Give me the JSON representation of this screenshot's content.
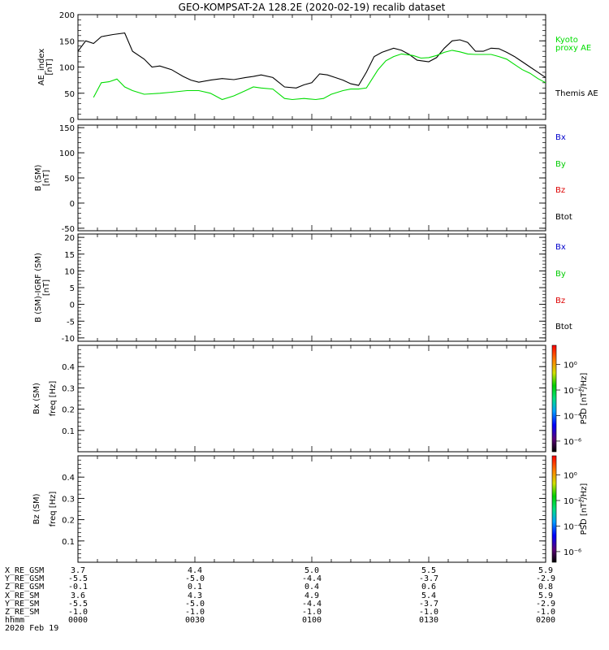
{
  "title": "GEO-KOMPSAT-2A 128.2E (2020-02-19) recalib dataset",
  "panels": {
    "ae": {
      "ylabel_line1": "AE_index",
      "ylabel_line2": "[nT]",
      "yticks": [
        "0",
        "50",
        "100",
        "150",
        "200"
      ],
      "legend": [
        {
          "text": "Kyoto",
          "color": "#00dd00"
        },
        {
          "text": "proxy AE",
          "color": "#00dd00"
        },
        {
          "text": "Themis AE",
          "color": "#000000"
        }
      ]
    },
    "b": {
      "ylabel_line1": "B (SM)",
      "ylabel_line2": "[nT]",
      "yticks": [
        "-50",
        "0",
        "50",
        "100",
        "150"
      ],
      "legend": [
        {
          "text": "Bx",
          "color": "#0000cc"
        },
        {
          "text": "By",
          "color": "#00cc00"
        },
        {
          "text": "Bz",
          "color": "#dd0000"
        },
        {
          "text": "Btot",
          "color": "#000000"
        }
      ]
    },
    "db": {
      "ylabel_line1": "B (SM)-IGRF (SM)",
      "ylabel_line2": "[nT]",
      "yticks": [
        "-10",
        "-5",
        "0",
        "5",
        "10",
        "15",
        "20"
      ],
      "legend": [
        {
          "text": "Bx",
          "color": "#0000cc"
        },
        {
          "text": "By",
          "color": "#00cc00"
        },
        {
          "text": "Bz",
          "color": "#dd0000"
        },
        {
          "text": "Btot",
          "color": "#000000"
        }
      ]
    },
    "bx_spec": {
      "ylabel_line1": "Bx (SM)",
      "ylabel_line2": "freq [Hz]",
      "yticks": [
        "0.1",
        "0.2",
        "0.3",
        "0.4"
      ],
      "colorbar_label": "PSD [nT²/Hz]",
      "colorbar_ticks": [
        "10⁰",
        "10⁻²",
        "10⁻⁴",
        "10⁻⁶"
      ]
    },
    "bz_spec": {
      "ylabel_line1": "Bz (SM)",
      "ylabel_line2": "freq [Hz]",
      "yticks": [
        "0.1",
        "0.2",
        "0.3",
        "0.4"
      ],
      "colorbar_label": "PSD [nT²/Hz]",
      "colorbar_ticks": [
        "10⁰",
        "10⁻²",
        "10⁻⁴",
        "10⁻⁶"
      ]
    }
  },
  "orbit": {
    "rows": [
      {
        "label": "X_RE_GSM",
        "values": [
          "3.7",
          "4.4",
          "5.0",
          "5.5",
          "5.9"
        ]
      },
      {
        "label": "Y_RE_GSM",
        "values": [
          "-5.5",
          "-5.0",
          "-4.4",
          "-3.7",
          "-2.9"
        ]
      },
      {
        "label": "Z_RE_GSM",
        "values": [
          "-0.1",
          "0.1",
          "0.4",
          "0.6",
          "0.8"
        ]
      },
      {
        "label": "X_RE_SM",
        "values": [
          "3.6",
          "4.3",
          "4.9",
          "5.4",
          "5.9"
        ]
      },
      {
        "label": "Y_RE_SM",
        "values": [
          "-5.5",
          "-5.0",
          "-4.4",
          "-3.7",
          "-2.9"
        ]
      },
      {
        "label": "Z_RE_SM",
        "values": [
          "-1.0",
          "-1.0",
          "-1.0",
          "-1.0",
          "-1.0"
        ]
      },
      {
        "label": "hhmm",
        "values": [
          "0000",
          "0030",
          "0100",
          "0130",
          "0200"
        ]
      }
    ],
    "date": "2020 Feb 19"
  },
  "chart_data": [
    {
      "type": "line",
      "panel": "ae",
      "ylabel": "AE_index [nT]",
      "ylim": [
        0,
        200
      ],
      "xlim": [
        0,
        120
      ],
      "x_units": "minutes after 0000 UT",
      "series": [
        {
          "name": "Themis AE",
          "color": "#000000",
          "x": [
            0,
            2,
            4,
            6,
            9,
            12,
            14,
            17,
            19,
            21,
            24,
            27,
            29,
            31,
            34,
            37,
            40,
            43,
            45,
            47,
            50,
            53,
            56,
            58,
            60,
            62,
            64,
            66,
            68,
            70,
            72,
            74,
            76,
            78,
            81,
            83,
            85,
            87,
            90,
            92,
            94,
            96,
            98,
            100,
            102,
            104,
            106,
            108,
            110,
            112,
            114,
            116,
            118,
            120
          ],
          "values": [
            130,
            150,
            145,
            158,
            162,
            165,
            130,
            115,
            100,
            102,
            95,
            82,
            75,
            71,
            75,
            78,
            76,
            80,
            82,
            85,
            80,
            62,
            60,
            66,
            70,
            87,
            85,
            80,
            75,
            68,
            65,
            90,
            120,
            128,
            136,
            132,
            124,
            113,
            110,
            118,
            136,
            150,
            152,
            147,
            130,
            130,
            136,
            135,
            128,
            120,
            110,
            100,
            90,
            80
          ]
        },
        {
          "name": "Kyoto proxy AE",
          "color": "#00dd00",
          "x": [
            4,
            6,
            8,
            10,
            12,
            14,
            17,
            21,
            24,
            28,
            31,
            34,
            37,
            40,
            43,
            45,
            47,
            50,
            53,
            55,
            58,
            61,
            63,
            65,
            68,
            70,
            72,
            74,
            77,
            79,
            81,
            83,
            86,
            88,
            90,
            92,
            94,
            96,
            98,
            100,
            102,
            104,
            106,
            108,
            110,
            112,
            114,
            116,
            118,
            120
          ],
          "values": [
            42,
            70,
            72,
            77,
            62,
            55,
            48,
            50,
            52,
            55,
            55,
            50,
            38,
            45,
            55,
            62,
            60,
            58,
            40,
            38,
            40,
            38,
            40,
            48,
            55,
            58,
            58,
            60,
            95,
            112,
            120,
            125,
            122,
            117,
            118,
            122,
            128,
            132,
            129,
            125,
            124,
            124,
            124,
            120,
            115,
            105,
            95,
            88,
            78,
            70
          ]
        }
      ]
    },
    {
      "type": "line",
      "panel": "b",
      "ylabel": "B (SM) [nT]",
      "ylim": [
        -55,
        155
      ],
      "series": []
    },
    {
      "type": "line",
      "panel": "db",
      "ylabel": "B (SM)-IGRF (SM) [nT]",
      "ylim": [
        -11,
        21
      ],
      "series": []
    },
    {
      "type": "heatmap",
      "panel": "bx_spec",
      "ylabel": "Bx (SM) freq [Hz]",
      "ylim": [
        0,
        0.5
      ],
      "values": []
    },
    {
      "type": "heatmap",
      "panel": "bz_spec",
      "ylabel": "Bz (SM) freq [Hz]",
      "ylim": [
        0,
        0.5
      ],
      "values": []
    }
  ]
}
